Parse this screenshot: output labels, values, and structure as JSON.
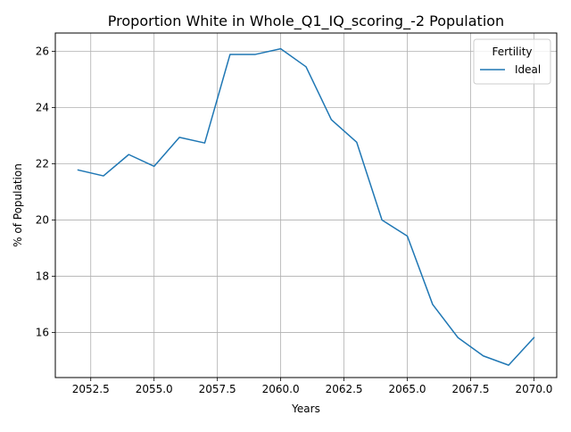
{
  "chart_data": {
    "type": "line",
    "title": "Proportion White in Whole_Q1_IQ_scoring_-2 Population",
    "xlabel": "Years",
    "ylabel": "% of Population",
    "xlim": [
      2051.1,
      2070.9
    ],
    "ylim": [
      14.4,
      26.65
    ],
    "xticks": [
      2052.5,
      2055.0,
      2057.5,
      2060.0,
      2062.5,
      2065.0,
      2067.5,
      2070.0
    ],
    "xtick_labels": [
      "2052.5",
      "2055.0",
      "2057.5",
      "2060.0",
      "2062.5",
      "2065.0",
      "2067.5",
      "2070.0"
    ],
    "yticks": [
      16,
      18,
      20,
      22,
      24,
      26
    ],
    "ytick_labels": [
      "16",
      "18",
      "20",
      "22",
      "24",
      "26"
    ],
    "grid": true,
    "legend": {
      "title": "Fertility",
      "placement": "top-right"
    },
    "x": [
      2052,
      2053,
      2054,
      2055,
      2056,
      2057,
      2058,
      2059,
      2060,
      2061,
      2062,
      2063,
      2064,
      2065,
      2066,
      2067,
      2068,
      2069,
      2070
    ],
    "series": [
      {
        "name": "Ideal",
        "color": "#1f77b4",
        "values": [
          21.78,
          21.57,
          22.33,
          21.91,
          22.94,
          22.74,
          25.89,
          25.89,
          26.09,
          25.45,
          23.57,
          22.77,
          20.0,
          19.43,
          17.0,
          15.82,
          15.17,
          14.84,
          15.82
        ]
      }
    ]
  }
}
